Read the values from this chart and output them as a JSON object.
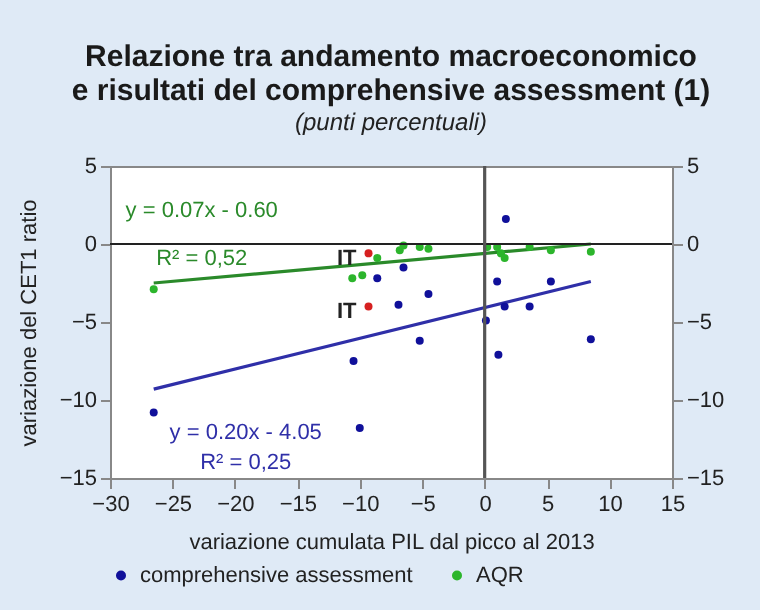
{
  "chart_data": {
    "type": "scatter",
    "title": "Relazione tra andamento macroeconomico\ne risultati del comprehensive assessment (1)",
    "subtitle": "(punti percentuali)",
    "xlabel": "variazione cumulata PIL dal picco al 2013",
    "ylabel": "variazione del CET1 ratio",
    "xlim": [
      -30,
      15
    ],
    "xticks": [
      -30,
      -25,
      -20,
      -15,
      -10,
      -5,
      0,
      5,
      10,
      15
    ],
    "ylim": [
      -15,
      5
    ],
    "yticks": [
      -15,
      -10,
      -5,
      0,
      5
    ],
    "y2lim": [
      -15,
      5
    ],
    "y2ticks": [
      -15,
      -10,
      -5,
      0,
      5
    ],
    "legend": "bottom",
    "series": [
      {
        "name": "comprehensive assessment",
        "color": "#10109a",
        "x": [
          -26.5,
          -10.5,
          -10.0,
          -8.6,
          -6.9,
          -6.5,
          -4.5,
          -5.2,
          1.7,
          1.0,
          1.6,
          0.1,
          1.1,
          3.6,
          5.3,
          8.5
        ],
        "values": [
          -10.8,
          -7.5,
          -11.8,
          -2.2,
          -3.9,
          -1.5,
          -3.2,
          -6.2,
          1.6,
          -2.4,
          -4.0,
          -4.9,
          -7.1,
          -4.0,
          -2.4,
          -6.1
        ]
      },
      {
        "name": "AQR",
        "color": "#2cb52c",
        "x": [
          -26.5,
          -10.6,
          -9.8,
          -8.6,
          -6.8,
          -6.5,
          -5.2,
          -4.5,
          0.2,
          1.0,
          1.3,
          1.6,
          3.6,
          5.3,
          8.5
        ],
        "values": [
          -2.9,
          -2.2,
          -2.0,
          -0.9,
          -0.4,
          -0.1,
          -0.2,
          -0.3,
          -0.2,
          -0.2,
          -0.6,
          -0.9,
          -0.2,
          -0.4,
          -0.5
        ]
      },
      {
        "color": "#d62020",
        "x": [
          -9.3,
          -9.3
        ],
        "values": [
          -0.6,
          -4.0
        ]
      },
      {
        "type": "line",
        "color": "#2a8a2a",
        "x": [
          -26.5,
          8.5
        ],
        "values": [
          -2.5,
          0.0
        ]
      },
      {
        "type": "line",
        "color": "#2f2fa8",
        "x": [
          -26.5,
          8.5
        ],
        "values": [
          -9.3,
          -2.4
        ]
      }
    ],
    "ref_lines": [
      {
        "axis": "x",
        "value": 0
      },
      {
        "axis": "y",
        "value": 0
      }
    ],
    "annotations": [
      {
        "text": "IT",
        "x": -9.3,
        "y": -0.6
      },
      {
        "text": "IT",
        "x": -9.3,
        "y": -4.0
      },
      "y = 0.07x - 0.60",
      "R² = 0,52",
      "y = 0.20x - 4.05",
      "R² = 0,25"
    ]
  }
}
